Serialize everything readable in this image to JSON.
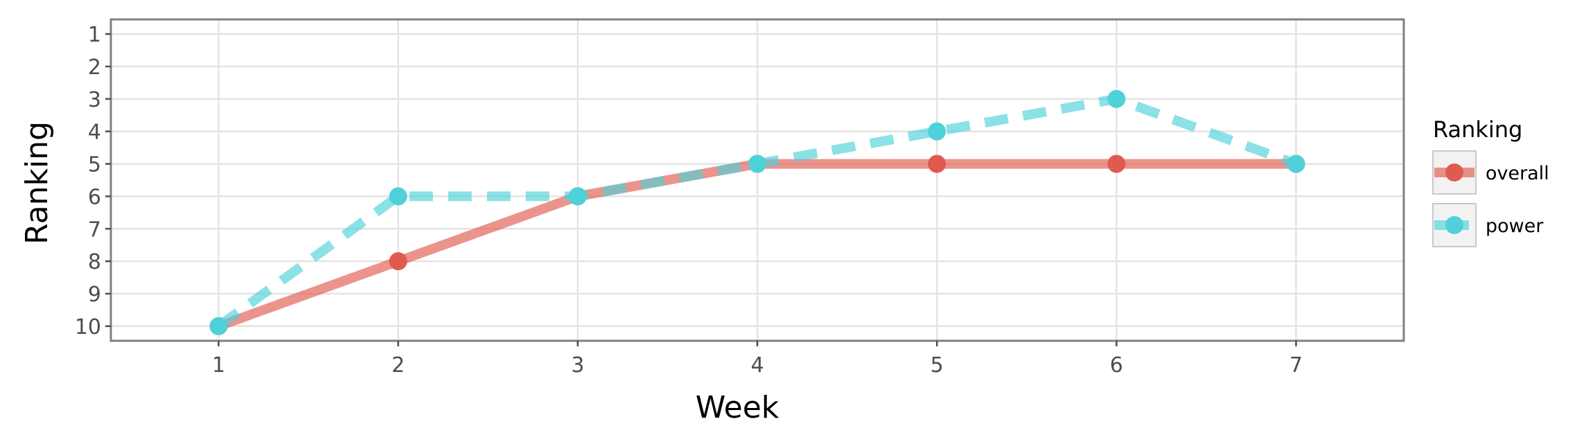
{
  "chart_data": {
    "type": "line",
    "xlabel": "Week",
    "ylabel": "Ranking",
    "x": [
      1,
      2,
      3,
      4,
      5,
      6,
      7
    ],
    "x_ticks": [
      "1",
      "2",
      "3",
      "4",
      "5",
      "6",
      "7"
    ],
    "y_ticks": [
      "1",
      "2",
      "3",
      "4",
      "5",
      "6",
      "7",
      "8",
      "9",
      "10"
    ],
    "xlim": [
      0.4,
      7.6
    ],
    "ylim": [
      10.45,
      0.55
    ],
    "y_reversed": true,
    "grid": true,
    "legend": {
      "title": "Ranking",
      "position": "right",
      "entries": [
        "overall",
        "power"
      ]
    },
    "series": [
      {
        "name": "overall",
        "values": [
          10,
          8,
          6,
          5,
          5,
          5,
          5
        ],
        "color": "#e05a4f",
        "line_style": "solid"
      },
      {
        "name": "power",
        "values": [
          10,
          6,
          6,
          5,
          4,
          3,
          5
        ],
        "color": "#4fd1d9",
        "line_style": "dashed"
      }
    ]
  }
}
